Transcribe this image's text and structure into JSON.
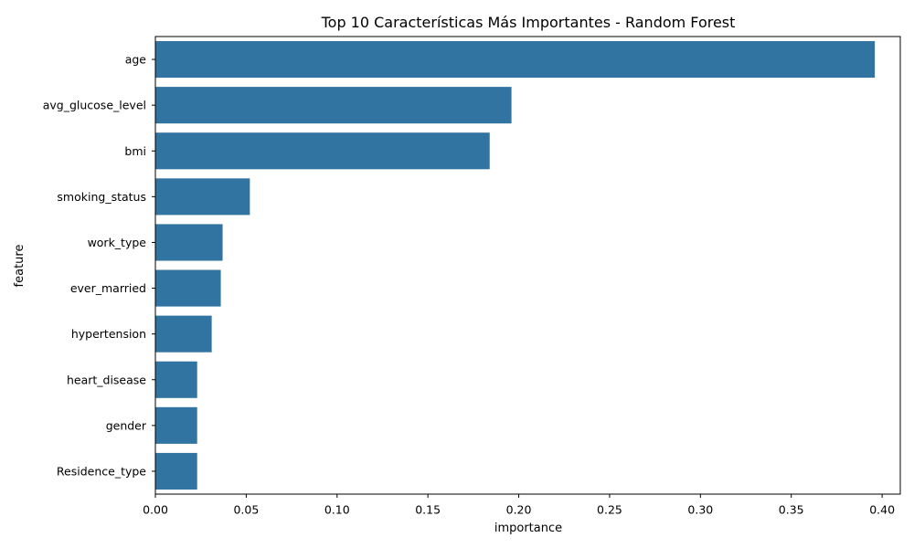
{
  "chart_data": {
    "type": "bar",
    "orientation": "horizontal",
    "title": "Top 10 Características Más Importantes - Random Forest",
    "xlabel": "importance",
    "ylabel": "feature",
    "categories": [
      "age",
      "avg_glucose_level",
      "bmi",
      "smoking_status",
      "work_type",
      "ever_married",
      "hypertension",
      "heart_disease",
      "gender",
      "Residence_type"
    ],
    "values": [
      0.396,
      0.196,
      0.184,
      0.052,
      0.037,
      0.036,
      0.031,
      0.023,
      0.023,
      0.023
    ],
    "xlim": [
      0.0,
      0.41
    ],
    "xticks": [
      0.0,
      0.05,
      0.1,
      0.15,
      0.2,
      0.25,
      0.3,
      0.35,
      0.4
    ],
    "xtick_labels": [
      "0.00",
      "0.05",
      "0.10",
      "0.15",
      "0.20",
      "0.25",
      "0.30",
      "0.35",
      "0.40"
    ],
    "bar_color": "#3274a1",
    "grid": false,
    "legend": false
  }
}
